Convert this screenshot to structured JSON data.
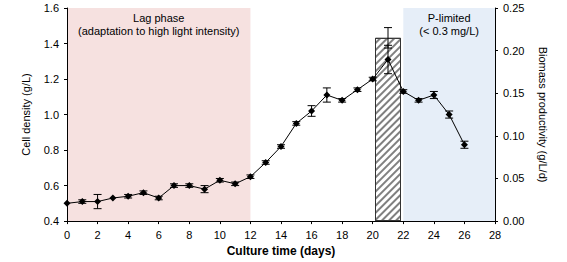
{
  "chart_data": {
    "type": "line",
    "x_label": "Culture time (days)",
    "y_label": "Cell density (g/L)",
    "y2_label": "Biomass productivity (g/L/d)",
    "xlim": [
      0,
      28
    ],
    "xticks": [
      0,
      2,
      4,
      6,
      8,
      10,
      12,
      14,
      16,
      18,
      20,
      22,
      24,
      26,
      28
    ],
    "ylim": [
      0.4,
      1.6
    ],
    "yticks": [
      0.4,
      0.6,
      0.8,
      {
        "value": 1,
        "label": "1.0"
      },
      1.2,
      1.4,
      1.6
    ],
    "y2lim": [
      0,
      0.25
    ],
    "y2ticks": [
      {
        "value": 0,
        "label": "0.00"
      },
      {
        "value": 0.05,
        "label": "0.05"
      },
      {
        "value": 0.1,
        "label": "0.10"
      },
      {
        "value": 0.15,
        "label": "0.15"
      },
      {
        "value": 0.2,
        "label": "0.20"
      },
      {
        "value": 0.25,
        "label": "0.25"
      }
    ],
    "grid": false,
    "series": [
      {
        "type": "line",
        "color": "#000000",
        "marker": "diamond",
        "line_style": "solid",
        "x": [
          0,
          1,
          2,
          3,
          4,
          5,
          6,
          7,
          8,
          9,
          10,
          11,
          12,
          13,
          14,
          15,
          16,
          17,
          18,
          19,
          20,
          21,
          22,
          23,
          24,
          25,
          26
        ],
        "values": [
          0.5,
          0.51,
          0.51,
          0.53,
          0.54,
          0.56,
          0.53,
          0.6,
          0.6,
          0.58,
          0.63,
          0.61,
          0.65,
          0.73,
          0.82,
          0.95,
          1.02,
          1.11,
          1.08,
          1.14,
          1.2,
          1.31,
          1.13,
          1.08,
          1.11,
          1.0,
          0.83
        ],
        "errors": [
          0,
          0.01,
          0.04,
          0,
          0.01,
          0.01,
          0.01,
          0.01,
          0.01,
          0.02,
          0.01,
          0.01,
          0.01,
          0.01,
          0.01,
          0.01,
          0.03,
          0.04,
          0.01,
          0.01,
          0.01,
          0.08,
          0.01,
          0.01,
          0.02,
          0.02,
          0.02
        ]
      },
      {
        "type": "bar",
        "axis": "y2",
        "color": "#808080",
        "x": [
          21
        ],
        "values": [
          0.215
        ],
        "errors": [
          0.012
        ]
      }
    ],
    "regions": [
      {
        "x0": 0,
        "x1": 12,
        "color": "#f6e1e0",
        "label": [
          "Lag phase",
          "(adaptation to high light intensity)"
        ]
      },
      {
        "x0": 22,
        "x1": 28,
        "color": "#e6eef8",
        "label": [
          "P-limited",
          "(< 0.3 mg/L)"
        ]
      }
    ]
  }
}
